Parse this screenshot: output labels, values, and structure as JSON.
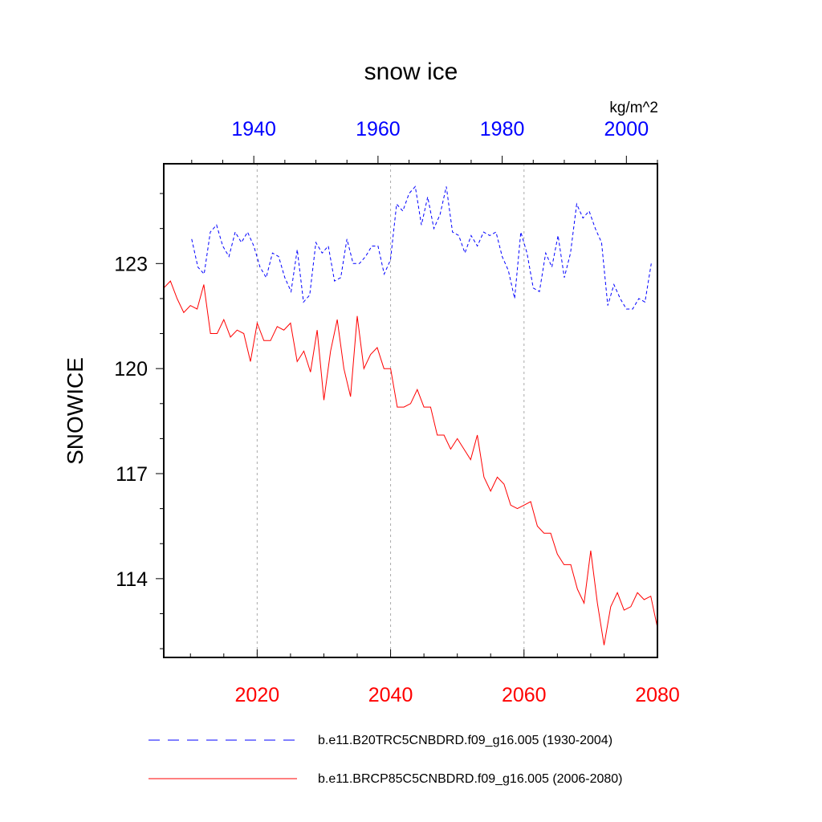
{
  "chart_data": {
    "type": "line",
    "title": "snow ice",
    "ylabel": "SNOWICE",
    "units": "kg/m^2",
    "ylim": [
      111.75,
      125.85
    ],
    "yticks": [
      114,
      117,
      120,
      123
    ],
    "top_axis": {
      "xlim": [
        1925.5,
        2005
      ],
      "ticks": [
        1940,
        1960,
        1980,
        2000
      ],
      "color": "#0000ff"
    },
    "bottom_axis": {
      "xlim": [
        2006,
        2080
      ],
      "ticks": [
        2020,
        2040,
        2060,
        2080
      ],
      "color": "#ff0000"
    },
    "grid": "vertical dotted at bottom-axis ticks",
    "legend_placement": "bottom",
    "series": [
      {
        "name": "b.e11.B20TRC5CNBDRD.f09_g16.005 (1930-2004)",
        "axis": "top",
        "style": "dashed",
        "color": "#0000ff",
        "x": [
          1930,
          1931,
          1932,
          1933,
          1934,
          1935,
          1936,
          1937,
          1938,
          1939,
          1940,
          1941,
          1942,
          1943,
          1944,
          1945,
          1946,
          1947,
          1948,
          1949,
          1950,
          1951,
          1952,
          1953,
          1954,
          1955,
          1956,
          1957,
          1958,
          1959,
          1960,
          1961,
          1962,
          1963,
          1964,
          1965,
          1966,
          1967,
          1968,
          1969,
          1970,
          1971,
          1972,
          1973,
          1974,
          1975,
          1976,
          1977,
          1978,
          1979,
          1980,
          1981,
          1982,
          1983,
          1984,
          1985,
          1986,
          1987,
          1988,
          1989,
          1990,
          1991,
          1992,
          1993,
          1994,
          1995,
          1996,
          1997,
          1998,
          1999,
          2000,
          2001,
          2002,
          2003,
          2004
        ],
        "values": [
          123.7,
          122.9,
          122.7,
          123.9,
          124.1,
          123.5,
          123.2,
          123.9,
          123.6,
          123.9,
          123.5,
          122.9,
          122.6,
          123.3,
          123.2,
          122.6,
          122.2,
          123.4,
          121.9,
          122.1,
          123.6,
          123.3,
          123.5,
          122.5,
          122.6,
          123.7,
          123.0,
          123.0,
          123.2,
          123.5,
          123.5,
          122.7,
          123.1,
          124.7,
          124.5,
          125.0,
          125.2,
          124.1,
          124.9,
          124.0,
          124.4,
          125.2,
          123.9,
          123.8,
          123.3,
          123.8,
          123.5,
          123.9,
          123.8,
          123.9,
          123.2,
          122.8,
          122.0,
          123.9,
          123.3,
          122.3,
          122.2,
          123.3,
          122.9,
          123.8,
          122.6,
          123.3,
          124.7,
          124.3,
          124.5,
          124.0,
          123.6,
          121.8,
          122.4,
          122.0,
          121.7,
          121.7,
          122.0,
          121.9,
          123.0
        ]
      },
      {
        "name": "b.e11.BRCP85C5CNBDRD.f09_g16.005 (2006-2080)",
        "axis": "bottom",
        "style": "solid",
        "color": "#ff0000",
        "x": [
          2006,
          2007,
          2008,
          2009,
          2010,
          2011,
          2012,
          2013,
          2014,
          2015,
          2016,
          2017,
          2018,
          2019,
          2020,
          2021,
          2022,
          2023,
          2024,
          2025,
          2026,
          2027,
          2028,
          2029,
          2030,
          2031,
          2032,
          2033,
          2034,
          2035,
          2036,
          2037,
          2038,
          2039,
          2040,
          2041,
          2042,
          2043,
          2044,
          2045,
          2046,
          2047,
          2048,
          2049,
          2050,
          2051,
          2052,
          2053,
          2054,
          2055,
          2056,
          2057,
          2058,
          2059,
          2060,
          2061,
          2062,
          2063,
          2064,
          2065,
          2066,
          2067,
          2068,
          2069,
          2070,
          2071,
          2072,
          2073,
          2074,
          2075,
          2076,
          2077,
          2078,
          2079,
          2080
        ],
        "values": [
          122.3,
          122.5,
          122.0,
          121.6,
          121.8,
          121.7,
          122.4,
          121.0,
          121.0,
          121.4,
          120.9,
          121.1,
          121.0,
          120.2,
          121.3,
          120.8,
          120.8,
          121.2,
          121.1,
          121.3,
          120.2,
          120.5,
          119.9,
          121.1,
          119.1,
          120.5,
          121.4,
          120.0,
          119.2,
          121.5,
          120.0,
          120.4,
          120.6,
          120.0,
          120.0,
          118.9,
          118.9,
          119.0,
          119.4,
          118.9,
          118.9,
          118.1,
          118.1,
          117.7,
          118.0,
          117.7,
          117.4,
          118.1,
          116.9,
          116.5,
          116.9,
          116.7,
          116.1,
          116.0,
          116.1,
          116.2,
          115.5,
          115.3,
          115.3,
          114.7,
          114.4,
          114.4,
          113.7,
          113.3,
          114.8,
          113.3,
          112.1,
          113.2,
          113.6,
          113.1,
          113.2,
          113.6,
          113.4,
          113.5,
          112.6
        ]
      }
    ]
  }
}
